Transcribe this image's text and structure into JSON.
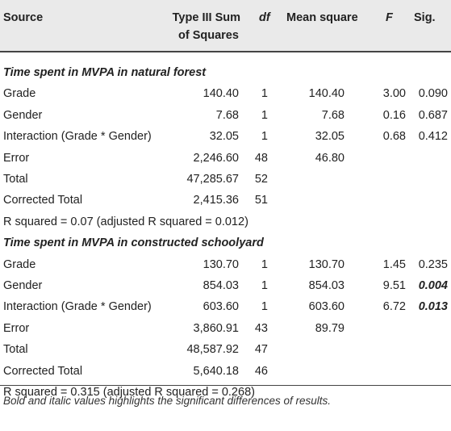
{
  "table": {
    "headers": {
      "source": "Source",
      "ss_line1": "Type III Sum",
      "ss_line2": "of Squares",
      "df": "df",
      "ms": "Mean square",
      "f": "F",
      "sig": "Sig."
    },
    "section1": {
      "title": "Time spent in MVPA in natural forest",
      "rows": [
        {
          "source": "Grade",
          "ss": "140.40",
          "df": "1",
          "ms": "140.40",
          "f": "3.00",
          "sig": "0.090",
          "bold": false
        },
        {
          "source": "Gender",
          "ss": "7.68",
          "df": "1",
          "ms": "7.68",
          "f": "0.16",
          "sig": "0.687",
          "bold": false
        },
        {
          "source": "Interaction (Grade * Gender)",
          "ss": "32.05",
          "df": "1",
          "ms": "32.05",
          "f": "0.68",
          "sig": "0.412",
          "bold": false
        },
        {
          "source": "Error",
          "ss": "2,246.60",
          "df": "48",
          "ms": "46.80",
          "f": "",
          "sig": "",
          "bold": false
        },
        {
          "source": "Total",
          "ss": "47,285.67",
          "df": "52",
          "ms": "",
          "f": "",
          "sig": "",
          "bold": false
        },
        {
          "source": "Corrected Total",
          "ss": "2,415.36",
          "df": "51",
          "ms": "",
          "f": "",
          "sig": "",
          "bold": false
        }
      ],
      "rsq": "R squared = 0.07 (adjusted R squared = 0.012)"
    },
    "section2": {
      "title": "Time spent in MVPA in constructed schoolyard",
      "rows": [
        {
          "source": "Grade",
          "ss": "130.70",
          "df": "1",
          "ms": "130.70",
          "f": "1.45",
          "sig": "0.235",
          "bold": false
        },
        {
          "source": "Gender",
          "ss": "854.03",
          "df": "1",
          "ms": "854.03",
          "f": "9.51",
          "sig": "0.004",
          "bold": true
        },
        {
          "source": "Interaction (Grade * Gender)",
          "ss": "603.60",
          "df": "1",
          "ms": "603.60",
          "f": "6.72",
          "sig": "0.013",
          "bold": true
        },
        {
          "source": "Error",
          "ss": "3,860.91",
          "df": "43",
          "ms": "89.79",
          "f": "",
          "sig": "",
          "bold": false
        },
        {
          "source": "Total",
          "ss": "48,587.92",
          "df": "47",
          "ms": "",
          "f": "",
          "sig": "",
          "bold": false
        },
        {
          "source": "Corrected Total",
          "ss": "5,640.18",
          "df": "46",
          "ms": "",
          "f": "",
          "sig": "",
          "bold": false
        }
      ],
      "rsq": "R squared = 0.315 (adjusted R squared = 0.268)"
    },
    "footnote": "Bold and italic values highlights the significant differences of results."
  }
}
